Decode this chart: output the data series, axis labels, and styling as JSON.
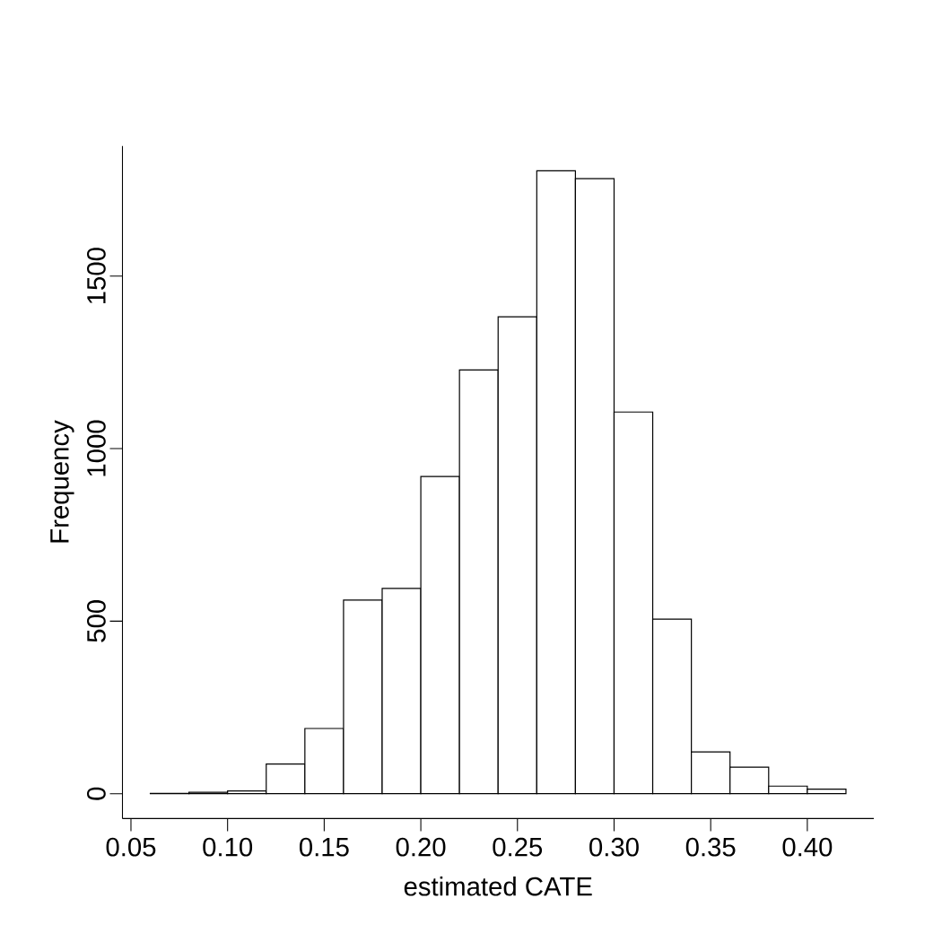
{
  "chart_data": {
    "type": "histogram",
    "xlabel": "estimated CATE",
    "ylabel": "Frequency",
    "color": "#ffffff",
    "bins": [
      0.06,
      0.08,
      0.1,
      0.12,
      0.14,
      0.16,
      0.18,
      0.2,
      0.22,
      0.24,
      0.26,
      0.28,
      0.3,
      0.32,
      0.34,
      0.36,
      0.38,
      0.4,
      0.42
    ],
    "values": [
      1,
      4,
      8,
      86,
      189,
      561,
      595,
      919,
      1228,
      1382,
      1805,
      1782,
      1106,
      506,
      121,
      77,
      22,
      13
    ],
    "xlim": [
      0.0456,
      0.4344
    ],
    "ylim": [
      -72,
      1877
    ],
    "xticks": [
      {
        "value": 0.05,
        "label": "0.05"
      },
      {
        "value": 0.1,
        "label": "0.10"
      },
      {
        "value": 0.15,
        "label": "0.15"
      },
      {
        "value": 0.2,
        "label": "0.20"
      },
      {
        "value": 0.25,
        "label": "0.25"
      },
      {
        "value": 0.3,
        "label": "0.30"
      },
      {
        "value": 0.35,
        "label": "0.35"
      },
      {
        "value": 0.4,
        "label": "0.40"
      }
    ],
    "yticks": [
      0,
      500,
      1000,
      1500
    ]
  }
}
